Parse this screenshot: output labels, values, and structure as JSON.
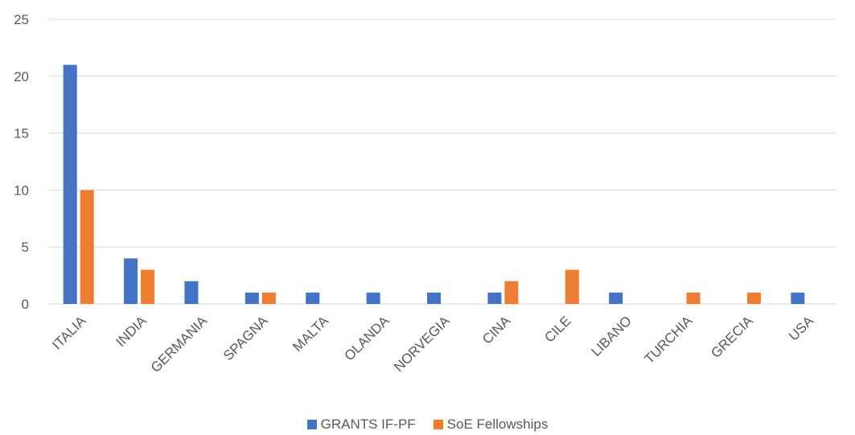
{
  "chart_data": {
    "type": "bar",
    "title": "",
    "xlabel": "",
    "ylabel": "",
    "ylim": [
      0,
      25
    ],
    "yticks": [
      0,
      5,
      10,
      15,
      20,
      25
    ],
    "grid": true,
    "legend_position": "bottom",
    "categories": [
      "ITALIA",
      "INDIA",
      "GERMANIA",
      "SPAGNA",
      "MALTA",
      "OLANDA",
      "NORVEGIA",
      "CINA",
      "CILE",
      "LIBANO",
      "TURCHIA",
      "GRECIA",
      "USA"
    ],
    "series": [
      {
        "name": "GRANTS IF-PF",
        "color": "#4472C4",
        "values": [
          21,
          4,
          2,
          1,
          1,
          1,
          1,
          1,
          0,
          1,
          0,
          0,
          1
        ]
      },
      {
        "name": "SoE Fellowships",
        "color": "#ED7D31",
        "values": [
          10,
          3,
          0,
          1,
          0,
          0,
          0,
          2,
          3,
          0,
          1,
          1,
          0
        ]
      }
    ]
  }
}
